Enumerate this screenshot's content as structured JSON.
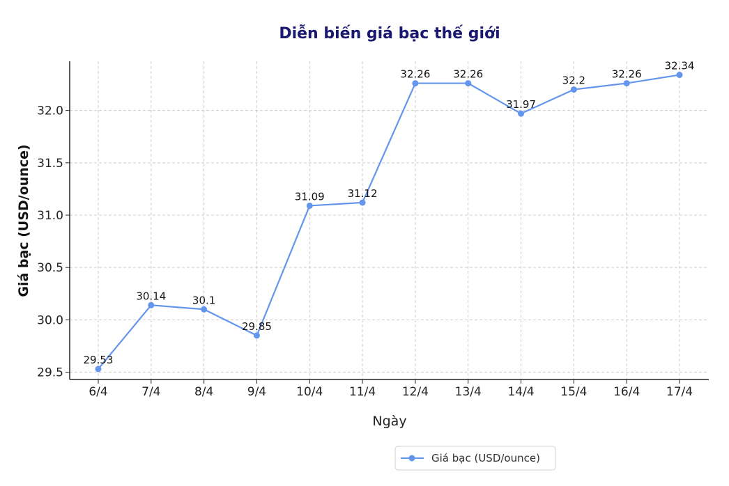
{
  "chart_data": {
    "type": "line",
    "title": "Diễn biến giá bạc thế giới",
    "xlabel": "Ngày",
    "ylabel": "Giá bạc (USD/ounce)",
    "categories": [
      "6/4",
      "7/4",
      "8/4",
      "9/4",
      "10/4",
      "11/4",
      "12/4",
      "13/4",
      "14/4",
      "15/4",
      "16/4",
      "17/4"
    ],
    "series": [
      {
        "name": "Giá bạc (USD/ounce)",
        "values": [
          29.53,
          30.14,
          30.1,
          29.85,
          31.09,
          31.12,
          32.26,
          32.26,
          31.97,
          32.2,
          32.26,
          32.34
        ],
        "color": "#6495ED"
      }
    ],
    "ylim": [
      29.43,
      32.47
    ],
    "yticks": [
      29.5,
      30.0,
      30.5,
      31.0,
      31.5,
      32.0
    ],
    "ytick_labels": [
      "29.5",
      "30.0",
      "30.5",
      "31.0",
      "31.5",
      "32.0"
    ],
    "grid": true,
    "legend_position": "bottom-center",
    "data_labels": true
  }
}
